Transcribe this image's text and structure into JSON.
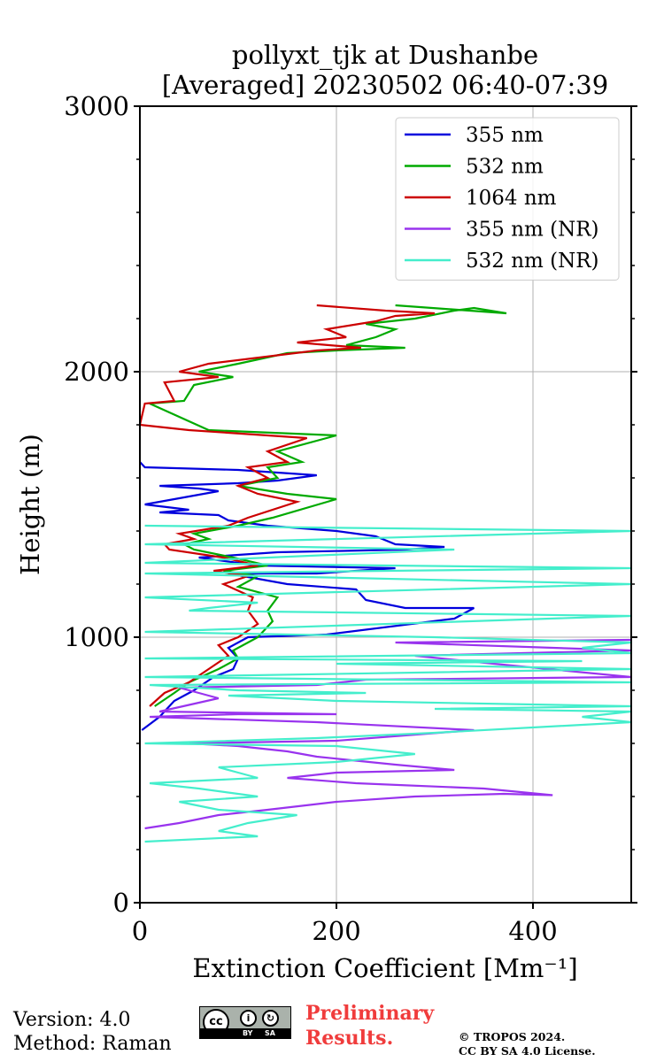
{
  "chart_data": {
    "type": "line",
    "title": "pollyxt_tjk at Dushanbe",
    "subtitle": "[Averaged] 20230502 06:40-07:39",
    "xlabel": "Extinction Coefficient [Mm⁻¹]",
    "ylabel": "Height (m)",
    "xlim": [
      0,
      500
    ],
    "ylim": [
      0,
      3000
    ],
    "xticks": [
      0,
      200,
      400
    ],
    "yticks": [
      0,
      1000,
      2000,
      3000
    ],
    "grid": true,
    "legend_position": "top-right",
    "series": [
      {
        "name": "355 nm",
        "color": "#0000dd",
        "points": [
          [
            2,
            650
          ],
          [
            20,
            700
          ],
          [
            35,
            760
          ],
          [
            55,
            800
          ],
          [
            75,
            850
          ],
          [
            95,
            880
          ],
          [
            100,
            920
          ],
          [
            90,
            960
          ],
          [
            110,
            1000
          ],
          [
            190,
            1010
          ],
          [
            320,
            1070
          ],
          [
            340,
            1110
          ],
          [
            270,
            1110
          ],
          [
            230,
            1140
          ],
          [
            220,
            1180
          ],
          [
            150,
            1200
          ],
          [
            90,
            1240
          ],
          [
            180,
            1240
          ],
          [
            220,
            1250
          ],
          [
            260,
            1260
          ],
          [
            120,
            1270
          ],
          [
            60,
            1300
          ],
          [
            140,
            1320
          ],
          [
            270,
            1330
          ],
          [
            310,
            1340
          ],
          [
            260,
            1350
          ],
          [
            240,
            1380
          ],
          [
            200,
            1400
          ],
          [
            130,
            1420
          ],
          [
            90,
            1440
          ],
          [
            80,
            1460
          ],
          [
            20,
            1470
          ],
          [
            50,
            1480
          ],
          [
            5,
            1500
          ],
          [
            80,
            1550
          ],
          [
            60,
            1560
          ],
          [
            20,
            1570
          ],
          [
            100,
            1580
          ],
          [
            140,
            1590
          ],
          [
            180,
            1610
          ],
          [
            100,
            1630
          ],
          [
            5,
            1640
          ],
          [
            0,
            1660
          ]
        ]
      },
      {
        "name": "532 nm",
        "color": "#00aa00",
        "points": [
          [
            15,
            740
          ],
          [
            35,
            790
          ],
          [
            50,
            830
          ],
          [
            80,
            880
          ],
          [
            100,
            920
          ],
          [
            95,
            950
          ],
          [
            120,
            1000
          ],
          [
            135,
            1060
          ],
          [
            130,
            1100
          ],
          [
            140,
            1150
          ],
          [
            100,
            1190
          ],
          [
            120,
            1230
          ],
          [
            85,
            1250
          ],
          [
            130,
            1270
          ],
          [
            95,
            1300
          ],
          [
            55,
            1330
          ],
          [
            45,
            1350
          ],
          [
            70,
            1370
          ],
          [
            55,
            1390
          ],
          [
            100,
            1420
          ],
          [
            135,
            1450
          ],
          [
            200,
            1520
          ],
          [
            150,
            1540
          ],
          [
            100,
            1570
          ],
          [
            140,
            1600
          ],
          [
            130,
            1640
          ],
          [
            165,
            1660
          ],
          [
            140,
            1700
          ],
          [
            200,
            1760
          ],
          [
            70,
            1780
          ],
          [
            10,
            1880
          ],
          [
            45,
            1890
          ],
          [
            55,
            1950
          ],
          [
            95,
            1980
          ],
          [
            60,
            2000
          ],
          [
            100,
            2030
          ],
          [
            150,
            2070
          ],
          [
            200,
            2080
          ],
          [
            270,
            2090
          ],
          [
            210,
            2100
          ],
          [
            240,
            2130
          ],
          [
            260,
            2160
          ],
          [
            230,
            2180
          ],
          [
            280,
            2200
          ],
          [
            320,
            2230
          ],
          [
            340,
            2240
          ],
          [
            373,
            2220
          ],
          [
            260,
            2250
          ]
        ]
      },
      {
        "name": "1064 nm",
        "color": "#cc0000",
        "points": [
          [
            10,
            740
          ],
          [
            25,
            790
          ],
          [
            50,
            830
          ],
          [
            70,
            880
          ],
          [
            90,
            930
          ],
          [
            80,
            970
          ],
          [
            100,
            1000
          ],
          [
            120,
            1050
          ],
          [
            110,
            1100
          ],
          [
            115,
            1150
          ],
          [
            85,
            1200
          ],
          [
            110,
            1230
          ],
          [
            75,
            1250
          ],
          [
            120,
            1270
          ],
          [
            85,
            1300
          ],
          [
            30,
            1330
          ],
          [
            25,
            1350
          ],
          [
            55,
            1370
          ],
          [
            40,
            1390
          ],
          [
            90,
            1420
          ],
          [
            110,
            1450
          ],
          [
            160,
            1510
          ],
          [
            120,
            1540
          ],
          [
            100,
            1570
          ],
          [
            130,
            1600
          ],
          [
            110,
            1640
          ],
          [
            150,
            1660
          ],
          [
            130,
            1700
          ],
          [
            170,
            1750
          ],
          [
            50,
            1780
          ],
          [
            0,
            1800
          ],
          [
            5,
            1880
          ],
          [
            35,
            1890
          ],
          [
            25,
            1960
          ],
          [
            80,
            1980
          ],
          [
            40,
            2000
          ],
          [
            70,
            2030
          ],
          [
            180,
            2080
          ],
          [
            225,
            2090
          ],
          [
            160,
            2110
          ],
          [
            210,
            2130
          ],
          [
            190,
            2160
          ],
          [
            240,
            2190
          ],
          [
            260,
            2210
          ],
          [
            300,
            2220
          ],
          [
            250,
            2230
          ],
          [
            180,
            2250
          ]
        ]
      },
      {
        "name": "355 nm (NR)",
        "color": "#9933ee",
        "points": [
          [
            5,
            280
          ],
          [
            40,
            300
          ],
          [
            80,
            330
          ],
          [
            130,
            350
          ],
          [
            200,
            380
          ],
          [
            280,
            400
          ],
          [
            370,
            410
          ],
          [
            420,
            405
          ],
          [
            350,
            430
          ],
          [
            220,
            450
          ],
          [
            150,
            470
          ],
          [
            200,
            490
          ],
          [
            320,
            500
          ],
          [
            260,
            520
          ],
          [
            180,
            550
          ],
          [
            150,
            570
          ],
          [
            100,
            590
          ],
          [
            50,
            600
          ],
          [
            200,
            610
          ],
          [
            340,
            650
          ],
          [
            180,
            680
          ],
          [
            10,
            700
          ],
          [
            100,
            710
          ],
          [
            200,
            710
          ],
          [
            20,
            720
          ],
          [
            80,
            770
          ],
          [
            40,
            810
          ],
          [
            180,
            820
          ],
          [
            230,
            840
          ],
          [
            500,
            850
          ],
          [
            360,
            900
          ],
          [
            280,
            930
          ],
          [
            500,
            950
          ],
          [
            260,
            980
          ],
          [
            500,
            990
          ]
        ]
      },
      {
        "name": "532 nm (NR)",
        "color": "#44eecc",
        "points": [
          [
            5,
            230
          ],
          [
            120,
            250
          ],
          [
            80,
            270
          ],
          [
            110,
            300
          ],
          [
            160,
            330
          ],
          [
            80,
            350
          ],
          [
            40,
            380
          ],
          [
            120,
            400
          ],
          [
            60,
            430
          ],
          [
            10,
            450
          ],
          [
            120,
            470
          ],
          [
            100,
            490
          ],
          [
            80,
            510
          ],
          [
            200,
            530
          ],
          [
            280,
            560
          ],
          [
            200,
            590
          ],
          [
            5,
            600
          ],
          [
            180,
            620
          ],
          [
            300,
            640
          ],
          [
            500,
            680
          ],
          [
            450,
            700
          ],
          [
            500,
            720
          ],
          [
            300,
            730
          ],
          [
            500,
            740
          ],
          [
            200,
            760
          ],
          [
            90,
            780
          ],
          [
            230,
            790
          ],
          [
            100,
            800
          ],
          [
            10,
            820
          ],
          [
            500,
            830
          ],
          [
            5,
            850
          ],
          [
            500,
            880
          ],
          [
            200,
            900
          ],
          [
            450,
            910
          ],
          [
            5,
            920
          ],
          [
            500,
            940
          ],
          [
            450,
            960
          ],
          [
            500,
            980
          ],
          [
            300,
            1000
          ],
          [
            5,
            1020
          ],
          [
            500,
            1080
          ],
          [
            50,
            1100
          ],
          [
            70,
            1110
          ],
          [
            120,
            1130
          ],
          [
            5,
            1150
          ],
          [
            500,
            1200
          ],
          [
            5,
            1240
          ],
          [
            500,
            1260
          ],
          [
            5,
            1280
          ],
          [
            320,
            1330
          ],
          [
            5,
            1350
          ],
          [
            500,
            1400
          ],
          [
            5,
            1420
          ]
        ]
      }
    ]
  },
  "footer": {
    "version": "Version: 4.0",
    "method": "Method: Raman",
    "preliminary_line1": "Preliminary",
    "preliminary_line2": "Results.",
    "copyright_line1": "© TROPOS 2024.",
    "copyright_line2": "CC BY SA 4.0 License.",
    "license_badge": {
      "cc": "cc",
      "by": "BY",
      "sa": "SA"
    }
  }
}
